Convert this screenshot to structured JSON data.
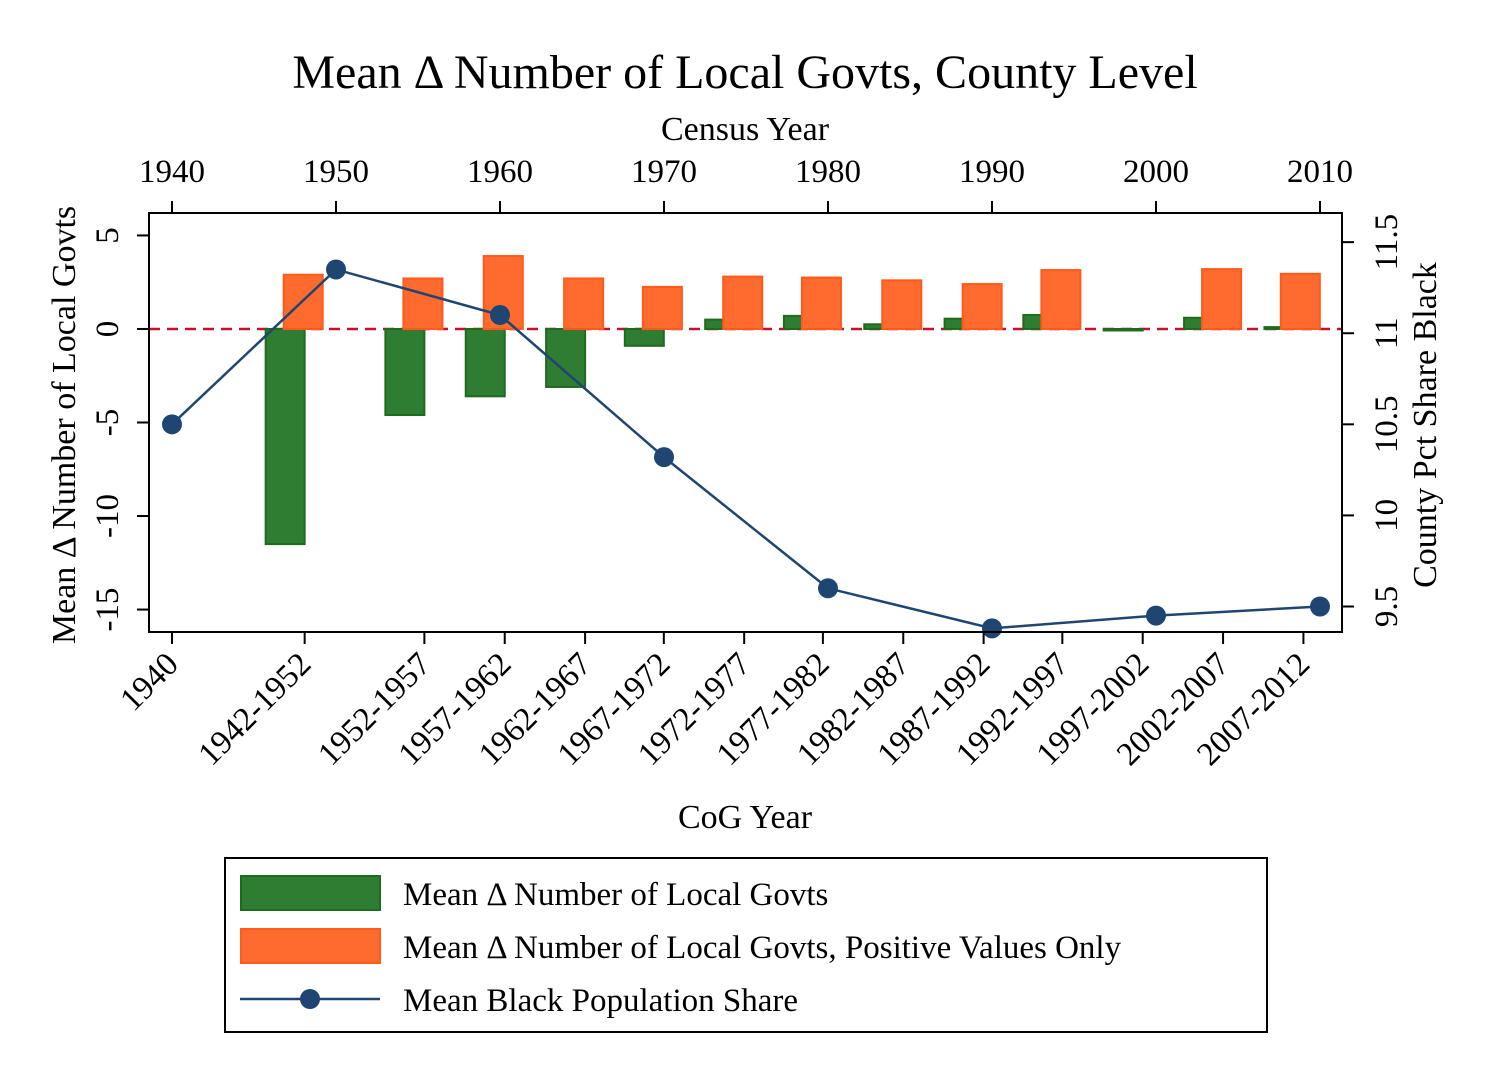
{
  "chart_data": {
    "type": "bar",
    "title": "Mean Δ Number of Local Govts, County Level",
    "top_axis": {
      "label": "Census Year",
      "range": [
        1940,
        2010
      ],
      "ticks": [
        "1940",
        "1950",
        "1960",
        "1970",
        "1980",
        "1990",
        "2000",
        "2010"
      ]
    },
    "x_axis": {
      "label": "CoG Year",
      "categories": [
        "1940",
        "1942-1952",
        "1952-1957",
        "1957-1962",
        "1962-1967",
        "1967-1972",
        "1972-1977",
        "1977-1982",
        "1982-1987",
        "1987-1992",
        "1992-1997",
        "1997-2002",
        "2002-2007",
        "2007-2012"
      ]
    },
    "y_left": {
      "label": "Mean Δ Number of Local Govts",
      "range": [
        -16.2,
        6.2
      ],
      "ticks": [
        "5",
        "0",
        "-5",
        "-10",
        "-15"
      ]
    },
    "y_right": {
      "label": "County Pct Share Black",
      "range": [
        9.36,
        11.66
      ],
      "ticks": [
        "11.5",
        "11",
        "10.5",
        "10",
        "9.5"
      ]
    },
    "reference_line": {
      "y": 0,
      "style": "dashed",
      "color": "#c8102e"
    },
    "series": [
      {
        "name": "Mean Δ Number of Local Govts",
        "axis": "left",
        "color": "#2e7d32",
        "points": [
          {
            "year": 1946.9,
            "value": -11.5
          },
          {
            "year": 1954.2,
            "value": -4.6
          },
          {
            "year": 1959.1,
            "value": -3.6
          },
          {
            "year": 1964.0,
            "value": -3.1
          },
          {
            "year": 1968.8,
            "value": -0.9
          },
          {
            "year": 1973.7,
            "value": 0.5
          },
          {
            "year": 1978.5,
            "value": 0.7
          },
          {
            "year": 1983.4,
            "value": 0.25
          },
          {
            "year": 1988.3,
            "value": 0.55
          },
          {
            "year": 1993.1,
            "value": 0.75
          },
          {
            "year": 1998.0,
            "value": 0.0
          },
          {
            "year": 2002.9,
            "value": 0.6
          },
          {
            "year": 2007.8,
            "value": 0.1
          }
        ]
      },
      {
        "name": "Mean Δ Number of Local Govts, Positive Values Only",
        "axis": "left",
        "color": "#ff6a2f",
        "points": [
          {
            "year": 1948.0,
            "value": 2.9
          },
          {
            "year": 1955.3,
            "value": 2.7
          },
          {
            "year": 1960.2,
            "value": 3.9
          },
          {
            "year": 1965.1,
            "value": 2.7
          },
          {
            "year": 1969.9,
            "value": 2.25
          },
          {
            "year": 1974.8,
            "value": 2.8
          },
          {
            "year": 1979.6,
            "value": 2.75
          },
          {
            "year": 1984.5,
            "value": 2.6
          },
          {
            "year": 1989.4,
            "value": 2.4
          },
          {
            "year": 1994.2,
            "value": 3.15
          },
          {
            "year": 2004.0,
            "value": 3.2
          },
          {
            "year": 2008.8,
            "value": 2.95
          }
        ]
      },
      {
        "name": "Mean Black Population Share",
        "axis": "right",
        "type": "line",
        "color": "#1f4672",
        "points": [
          {
            "year": 1940,
            "value": 10.5
          },
          {
            "year": 1950,
            "value": 11.35
          },
          {
            "year": 1960,
            "value": 11.1
          },
          {
            "year": 1970,
            "value": 10.32
          },
          {
            "year": 1980,
            "value": 9.6
          },
          {
            "year": 1990,
            "value": 9.38
          },
          {
            "year": 2000,
            "value": 9.45
          },
          {
            "year": 2010,
            "value": 9.5
          }
        ]
      }
    ],
    "legend": {
      "position": "bottom",
      "frame": true
    }
  }
}
